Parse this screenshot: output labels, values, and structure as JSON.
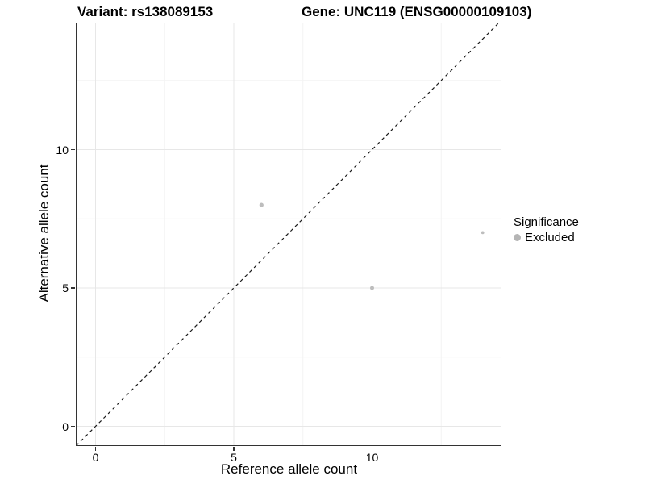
{
  "header": {
    "title_left": "Variant: rs138089153",
    "title_right": "Gene: UNC119 (ENSG00000109103)"
  },
  "chart_data": {
    "type": "scatter",
    "title": "Variant: rs138089153 — Gene: UNC119 (ENSG00000109103)",
    "xlabel": "Reference allele count",
    "ylabel": "Alternative allele count",
    "xlim": [
      -0.7,
      14.7
    ],
    "ylim": [
      -0.7,
      14.6
    ],
    "x_ticks": [
      0,
      5,
      10
    ],
    "y_ticks": [
      0,
      5,
      10
    ],
    "x_minor_ticks": [
      2.5,
      7.5,
      12.5
    ],
    "y_minor_ticks": [
      2.5,
      7.5,
      12.5
    ],
    "grid": true,
    "points": [
      {
        "x": 6,
        "y": 8,
        "r": 2.6
      },
      {
        "x": 10,
        "y": 5,
        "r": 2.5
      },
      {
        "x": 14,
        "y": 7,
        "r": 1.9
      }
    ],
    "point_color": "#bdbdbd",
    "identity_line": {
      "slope": 1,
      "intercept": 0,
      "style": "dashed",
      "color": "#1a1a1a"
    },
    "legend": {
      "position": "right",
      "title": "Significance",
      "items": [
        {
          "label": "Excluded",
          "color": "#b5b5b5"
        }
      ]
    },
    "colors": {
      "grid_major": "#e7e7e7",
      "grid_minor": "#f3f3f3",
      "axis_line": "#333333",
      "text": "#000000"
    }
  }
}
